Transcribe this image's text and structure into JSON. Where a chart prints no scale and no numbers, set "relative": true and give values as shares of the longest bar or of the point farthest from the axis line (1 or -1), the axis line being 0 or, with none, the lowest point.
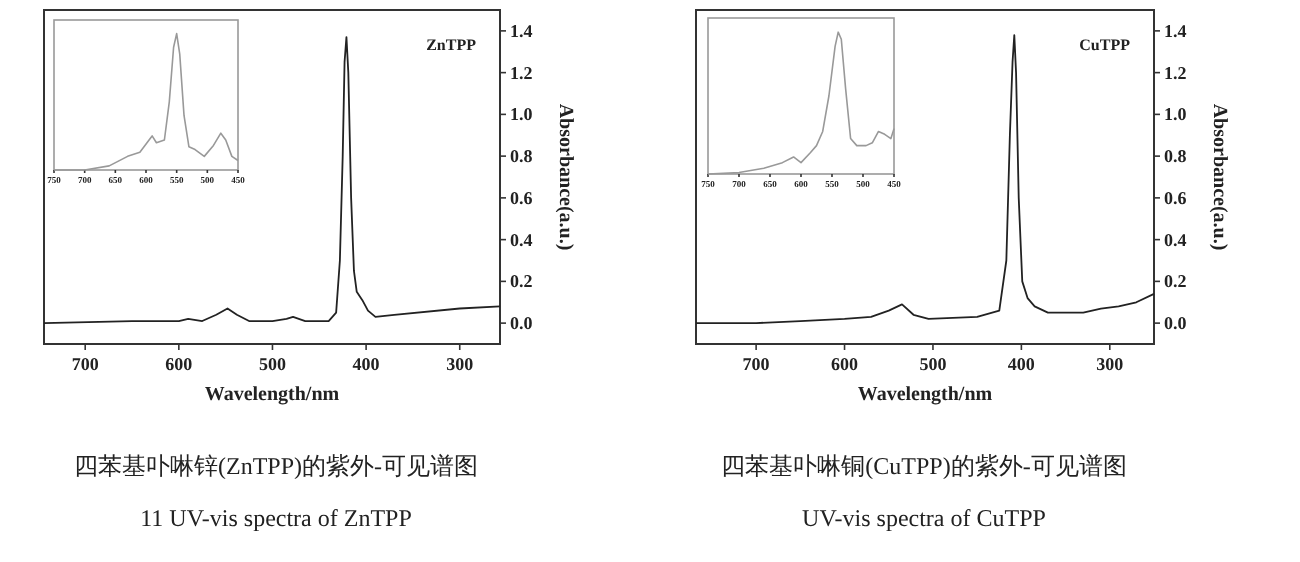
{
  "chart_data": [
    {
      "type": "line",
      "xlabel": "Wavelength/nm",
      "ylabel": "Absorbance(a.u.)",
      "xlim": [
        744,
        257
      ],
      "ylim": [
        -0.1,
        1.5
      ],
      "xticks": [
        700,
        600,
        500,
        400,
        300
      ],
      "yticks": [
        {
          "value": 0,
          "label": "0.0"
        },
        {
          "value": 0.2,
          "label": "0.2"
        },
        {
          "value": 0.4,
          "label": "0.4"
        },
        {
          "value": 0.6,
          "label": "0.6"
        },
        {
          "value": 0.8,
          "label": "0.8"
        },
        {
          "value": 1.0,
          "label": "1.0"
        },
        {
          "value": 1.2,
          "label": "1.2"
        },
        {
          "value": 1.4,
          "label": "1.4"
        }
      ],
      "annotations": [
        "ZnTPP",
        "四苯基卟啉锌(ZnTPP)的紫外-可见谱图",
        "11 UV-vis spectra of ZnTPP"
      ],
      "series": [
        {
          "color": "#222222",
          "x": [
            744,
            650,
            600,
            590,
            575,
            560,
            548,
            538,
            525,
            500,
            485,
            478,
            465,
            440,
            432,
            428,
            425,
            423,
            421,
            419,
            416,
            413,
            410,
            404,
            398,
            390,
            370,
            300,
            257
          ],
          "values": [
            0,
            0.01,
            0.01,
            0.02,
            0.01,
            0.04,
            0.07,
            0.04,
            0.01,
            0.01,
            0.02,
            0.03,
            0.01,
            0.01,
            0.05,
            0.3,
            0.8,
            1.25,
            1.37,
            1.2,
            0.6,
            0.25,
            0.15,
            0.11,
            0.06,
            0.03,
            0.04,
            0.07,
            0.08
          ]
        }
      ]
    },
    {
      "type": "line",
      "relative": true,
      "xlim": [
        750,
        450
      ],
      "xticks": [
        750,
        700,
        650,
        600,
        550,
        500,
        450
      ],
      "series": [
        {
          "color": "#999999",
          "x": [
            750,
            700,
            660,
            630,
            610,
            595,
            590,
            583,
            570,
            562,
            555,
            550,
            545,
            538,
            530,
            520,
            505,
            490,
            478,
            470,
            460,
            450
          ],
          "values": [
            0,
            0,
            0.03,
            0.1,
            0.13,
            0.22,
            0.25,
            0.2,
            0.22,
            0.5,
            0.9,
            1.0,
            0.85,
            0.4,
            0.17,
            0.15,
            0.1,
            0.18,
            0.27,
            0.22,
            0.1,
            0.07
          ]
        }
      ]
    },
    {
      "type": "line",
      "xlabel": "Wavelength/nm",
      "ylabel": "Absorbance(a.u.)",
      "xlim": [
        768,
        250
      ],
      "ylim": [
        -0.1,
        1.5
      ],
      "xticks": [
        700,
        600,
        500,
        400,
        300
      ],
      "yticks": [
        {
          "value": 0,
          "label": "0.0"
        },
        {
          "value": 0.2,
          "label": "0.2"
        },
        {
          "value": 0.4,
          "label": "0.4"
        },
        {
          "value": 0.6,
          "label": "0.6"
        },
        {
          "value": 0.8,
          "label": "0.8"
        },
        {
          "value": 1.0,
          "label": "1.0"
        },
        {
          "value": 1.2,
          "label": "1.2"
        },
        {
          "value": 1.4,
          "label": "1.4"
        }
      ],
      "annotations": [
        "CuTPP",
        "四苯基卟啉铜(CuTPP)的紫外-可见谱图",
        "UV-vis spectra of CuTPP"
      ],
      "series": [
        {
          "color": "#222222",
          "x": [
            768,
            700,
            650,
            600,
            570,
            550,
            535,
            522,
            505,
            450,
            425,
            417,
            413,
            410,
            408,
            406,
            403,
            399,
            393,
            385,
            370,
            330,
            310,
            290,
            270,
            250
          ],
          "values": [
            0,
            0,
            0.01,
            0.02,
            0.03,
            0.06,
            0.09,
            0.04,
            0.02,
            0.03,
            0.06,
            0.3,
            0.9,
            1.25,
            1.38,
            1.2,
            0.6,
            0.2,
            0.12,
            0.08,
            0.05,
            0.05,
            0.07,
            0.08,
            0.1,
            0.14
          ]
        }
      ]
    },
    {
      "type": "line",
      "relative": true,
      "xlim": [
        750,
        450
      ],
      "xticks": [
        750,
        700,
        650,
        600,
        550,
        500,
        450
      ],
      "series": [
        {
          "color": "#999999",
          "x": [
            750,
            700,
            660,
            630,
            612,
            600,
            585,
            575,
            565,
            555,
            545,
            540,
            535,
            528,
            520,
            510,
            495,
            485,
            475,
            465,
            455,
            450
          ],
          "values": [
            0,
            0.01,
            0.04,
            0.08,
            0.12,
            0.08,
            0.15,
            0.2,
            0.3,
            0.55,
            0.9,
            1.0,
            0.95,
            0.6,
            0.25,
            0.2,
            0.2,
            0.22,
            0.3,
            0.28,
            0.25,
            0.32
          ]
        }
      ]
    }
  ]
}
